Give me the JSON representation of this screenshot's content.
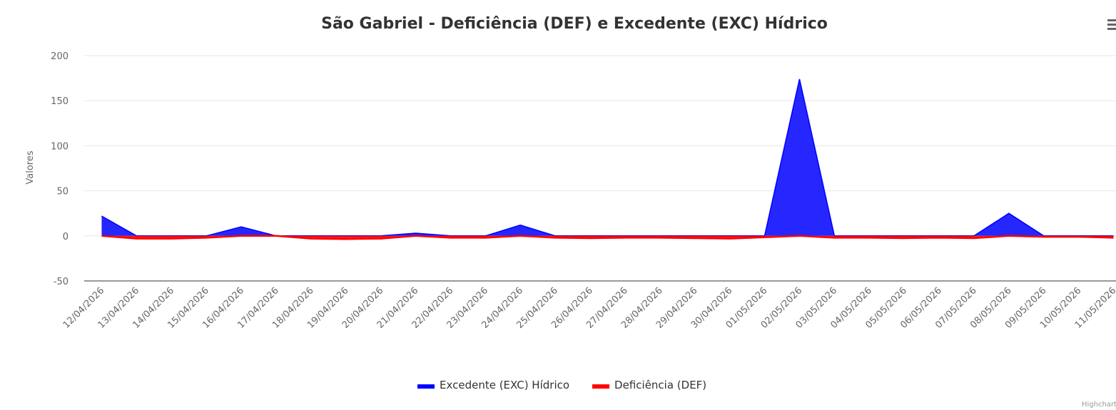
{
  "chart_data": {
    "type": "area",
    "title": "São Gabriel - Deficiência (DEF) e Excedente (EXC) Hídrico",
    "y_label": "Valores",
    "categories": [
      "12/04/2026",
      "13/04/2026",
      "14/04/2026",
      "15/04/2026",
      "16/04/2026",
      "17/04/2026",
      "18/04/2026",
      "19/04/2026",
      "20/04/2026",
      "21/04/2026",
      "22/04/2026",
      "23/04/2026",
      "24/04/2026",
      "25/04/2026",
      "26/04/2026",
      "27/04/2026",
      "28/04/2026",
      "29/04/2026",
      "30/04/2026",
      "01/05/2026",
      "02/05/2026",
      "03/05/2026",
      "04/05/2026",
      "05/05/2026",
      "06/05/2026",
      "07/05/2026",
      "08/05/2026",
      "09/05/2026",
      "10/05/2026",
      "11/05/2026"
    ],
    "series": [
      {
        "name": "Excedente (EXC) Hídrico",
        "color": "#0000ff",
        "values": [
          22,
          0,
          0,
          0,
          10,
          0,
          0,
          0,
          0,
          3,
          0,
          0,
          12,
          0,
          0,
          0,
          0,
          0,
          0,
          0,
          174,
          0,
          0,
          0,
          0,
          0,
          25,
          0,
          0,
          0
        ]
      },
      {
        "name": "Deficiência (DEF)",
        "color": "#ff0000",
        "values": [
          0,
          -3,
          -3,
          -2,
          0,
          0,
          -3,
          -3.5,
          -3,
          0,
          -2,
          -2,
          0,
          -2,
          -2.5,
          -2,
          -2,
          -2.5,
          -3,
          -1.5,
          0,
          -2,
          -2,
          -2.5,
          -2,
          -2.5,
          0,
          -1,
          -1,
          -2
        ]
      }
    ],
    "ylim": [
      -50,
      200
    ],
    "yticks": [
      -50,
      0,
      50,
      100,
      150,
      200
    ],
    "grid": true,
    "legend": "bottom",
    "credits": "Highcharts.com"
  }
}
